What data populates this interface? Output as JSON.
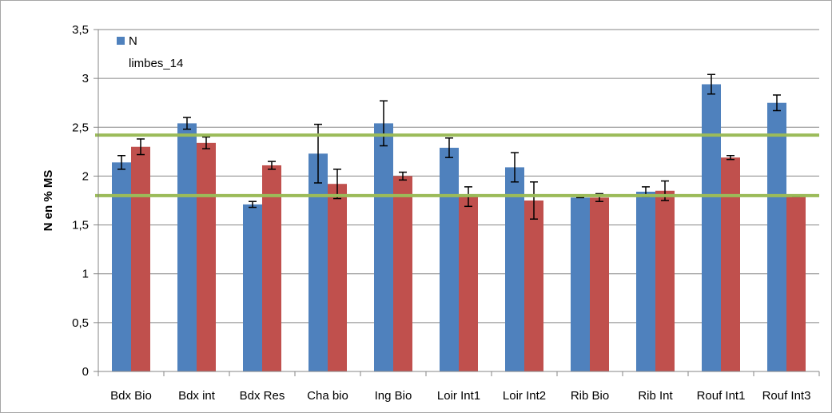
{
  "chart_data": {
    "type": "bar",
    "title": "",
    "xlabel": "",
    "ylabel": "N en % MS",
    "ylim": [
      0,
      3.5
    ],
    "yticks": [
      "0",
      "0,5",
      "1",
      "1,5",
      "2",
      "2,5",
      "3",
      "3,5"
    ],
    "grid": true,
    "legend_position": "top-left",
    "categories": [
      "Bdx Bio",
      "Bdx int",
      "Bdx Res",
      "Cha bio",
      "Ing Bio",
      "Loir Int1",
      "Loir Int2",
      "Rib Bio",
      "Rib Int",
      "Rouf Int1",
      "Rouf Int3"
    ],
    "series": [
      {
        "name": "N",
        "color": "#4f81bd",
        "values": [
          2.14,
          2.54,
          1.71,
          2.23,
          2.54,
          2.29,
          2.09,
          1.78,
          1.84,
          2.94,
          2.75
        ],
        "error": [
          0.07,
          0.06,
          0.03,
          0.3,
          0.23,
          0.1,
          0.15,
          0.0,
          0.05,
          0.1,
          0.08
        ]
      },
      {
        "name": "limbes_14",
        "color": "#c0504d",
        "values": [
          2.3,
          2.34,
          2.11,
          1.92,
          2.0,
          1.79,
          1.75,
          1.78,
          1.85,
          2.19,
          1.79
        ],
        "error": [
          0.08,
          0.06,
          0.04,
          0.15,
          0.04,
          0.1,
          0.19,
          0.04,
          0.1,
          0.02,
          0.0
        ]
      }
    ],
    "reference_lines": [
      {
        "value": 2.42,
        "color": "#9bbb59"
      },
      {
        "value": 1.8,
        "color": "#9bbb59"
      }
    ]
  }
}
